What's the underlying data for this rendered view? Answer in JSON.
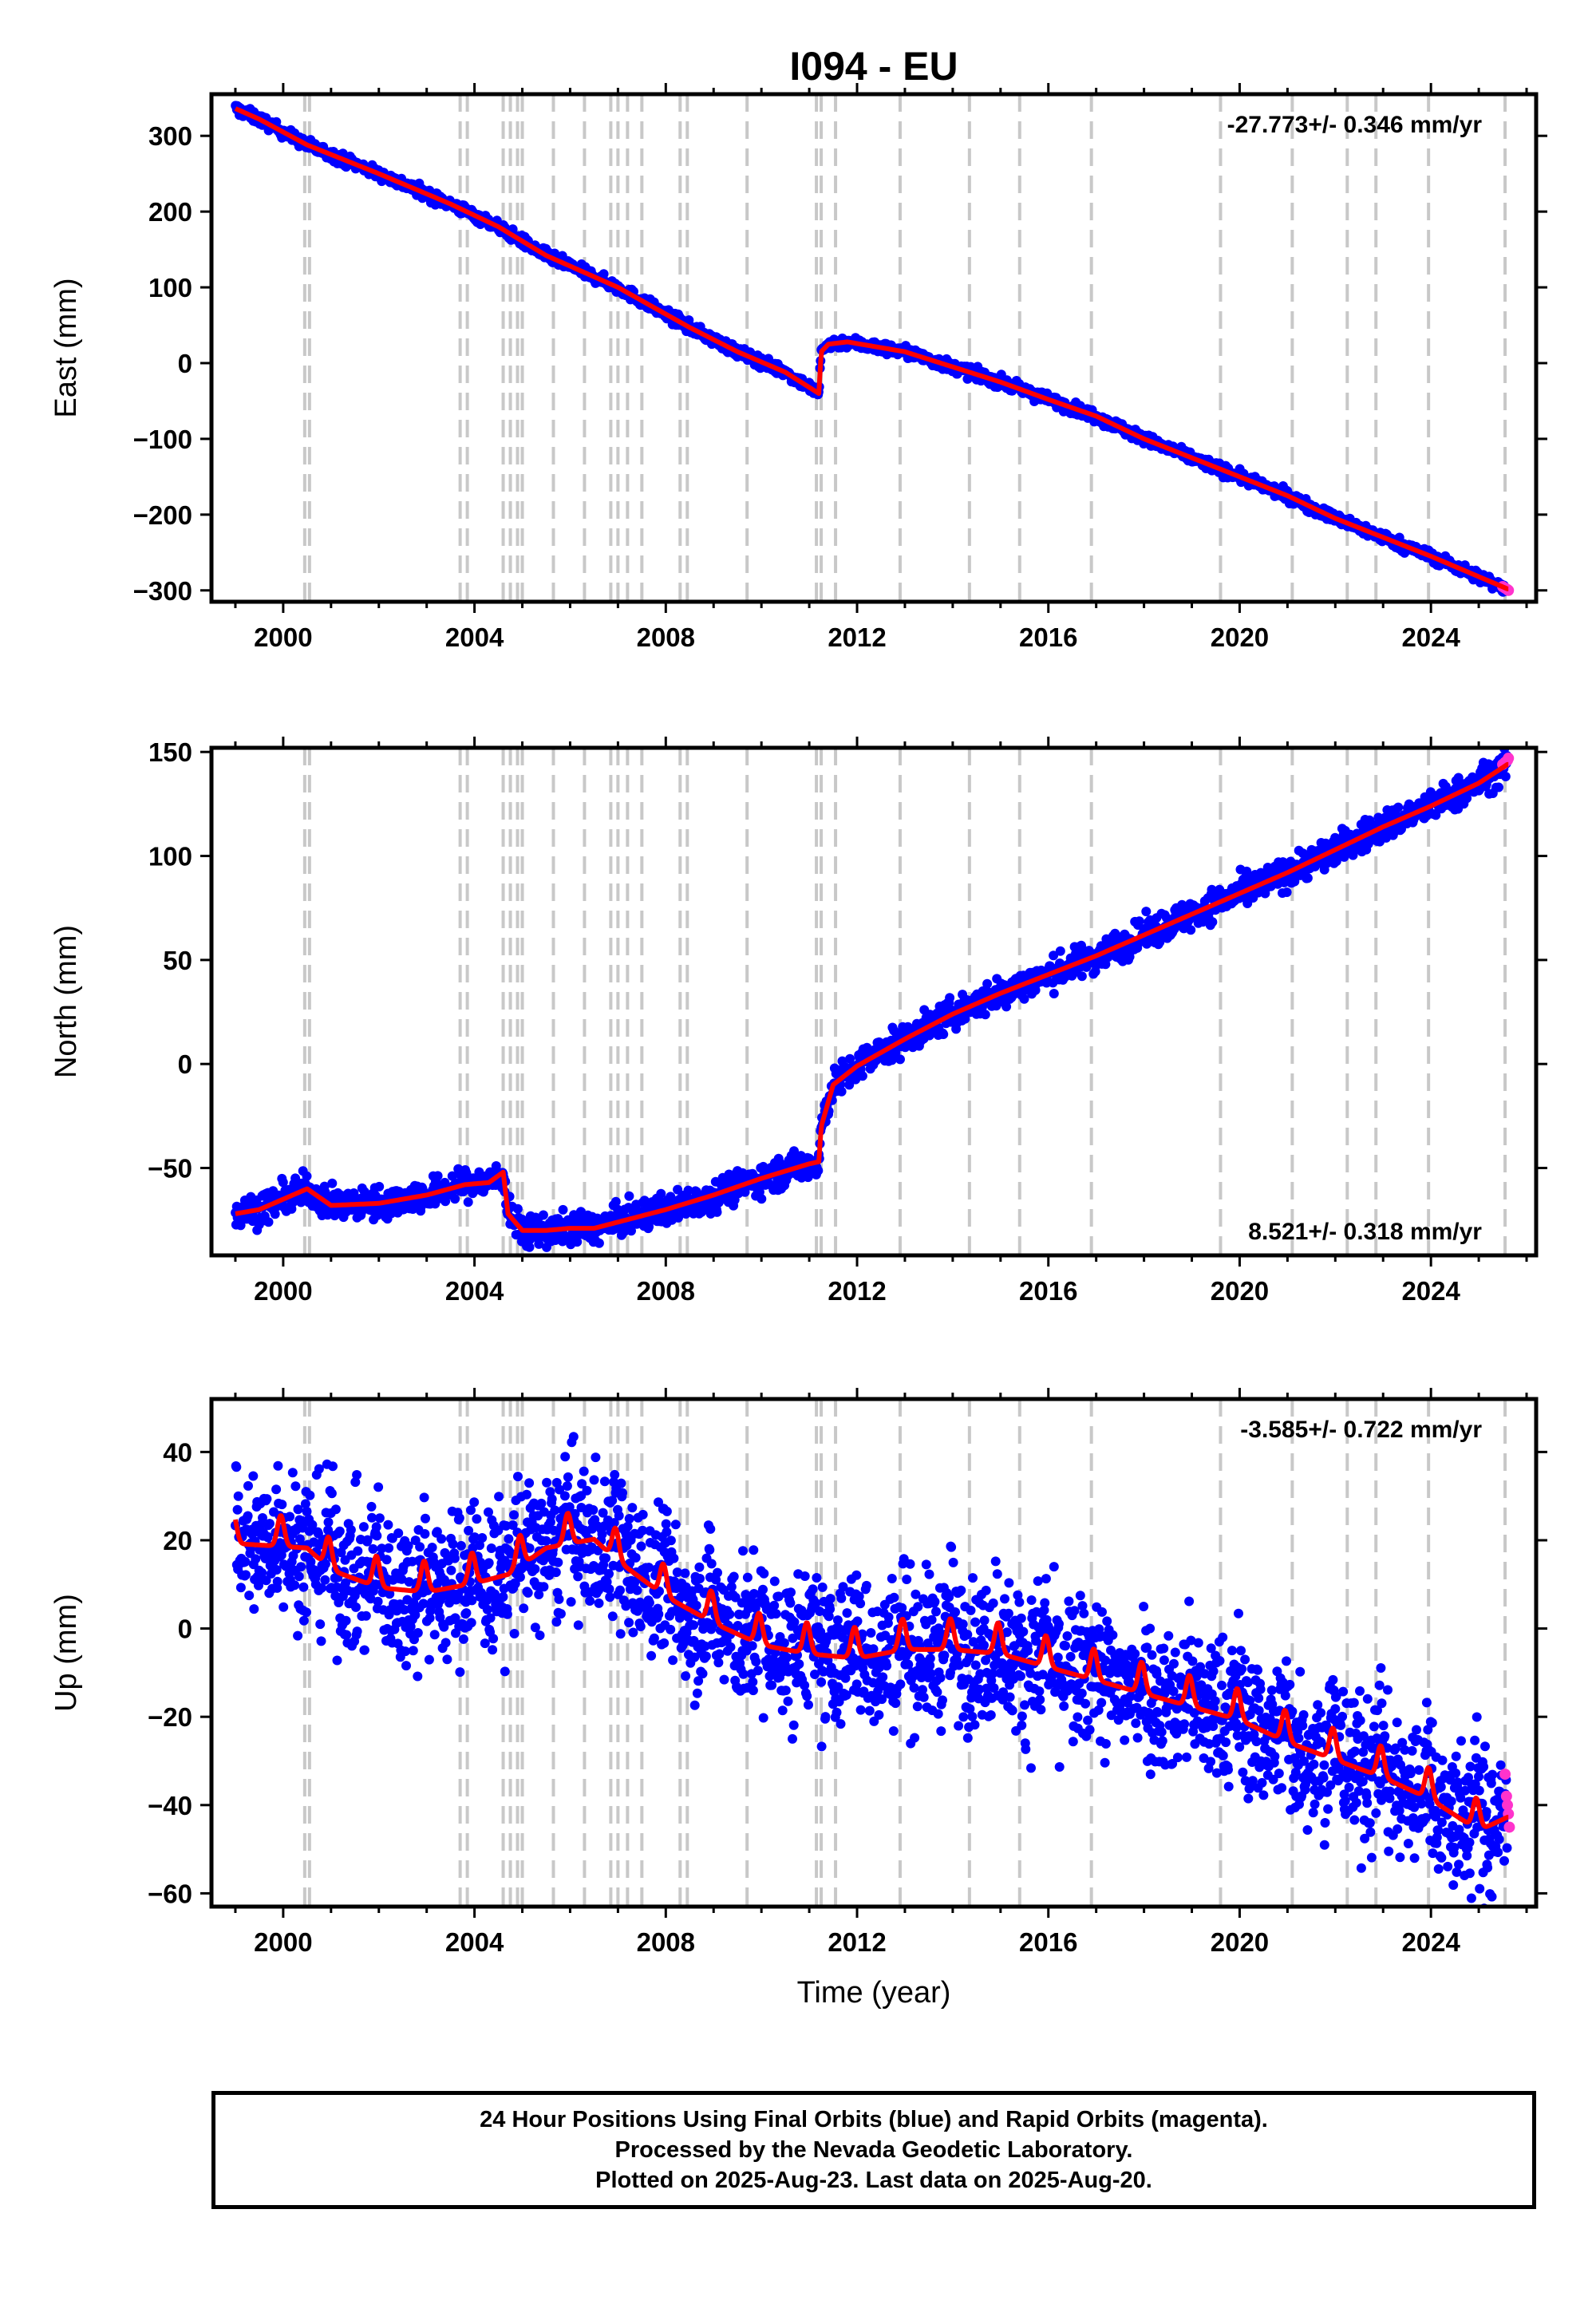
{
  "title": "I094 - EU",
  "colors": {
    "final_orbits": "#0000ff",
    "rapid_orbits": "#ff33cc",
    "model": "#ff0000",
    "event_lines": "#c8c8c8"
  },
  "footer": {
    "line1": "24 Hour Positions Using Final Orbits (blue) and Rapid Orbits (magenta).",
    "line2": "Processed by the Nevada Geodetic Laboratory.",
    "line3": "Plotted on 2025-Aug-23. Last data on 2025-Aug-20."
  },
  "chart_data": [
    {
      "type": "scatter",
      "component": "east",
      "ylabel": "East (mm)",
      "xlabel": "",
      "rate": "-27.773+/- 0.346 mm/yr",
      "rate_position": "top-right",
      "xlim": [
        1998.5,
        2026.2
      ],
      "ylim": [
        -315,
        355
      ],
      "yticks": [
        300,
        200,
        100,
        0,
        -100,
        -200,
        -300
      ],
      "ytick_labels": [
        "300",
        "200",
        "100",
        "0",
        "−100",
        "−200",
        "−300"
      ],
      "xticks": [
        2000,
        2004,
        2008,
        2012,
        2016,
        2020,
        2024
      ],
      "xtick_labels": [
        "2000",
        "2004",
        "2008",
        "2012",
        "2016",
        "2020",
        "2024"
      ],
      "model": {
        "x": [
          1999.0,
          1999.5,
          2000.5,
          2002.0,
          2003.5,
          2004.5,
          2005.5,
          2007.0,
          2008.5,
          2009.5,
          2010.5,
          2011.2,
          2011.25,
          2011.4,
          2011.8,
          2013.0,
          2014.0,
          2015.0,
          2016.0,
          2017.0,
          2018.0,
          2019.0,
          2020.0,
          2021.0,
          2022.0,
          2023.0,
          2024.0,
          2025.6
        ],
        "y": [
          336,
          322,
          288,
          250,
          210,
          180,
          142,
          100,
          47,
          15,
          -12,
          -40,
          15,
          25,
          28,
          15,
          -5,
          -25,
          -48,
          -70,
          -100,
          -125,
          -150,
          -175,
          -205,
          -230,
          -255,
          -298
        ]
      },
      "scatter_spread": 4,
      "rapid_points": {
        "x": [
          2025.5,
          2025.55,
          2025.6,
          2025.62
        ],
        "y": [
          -295,
          -297,
          -299,
          -300
        ]
      }
    },
    {
      "type": "scatter",
      "component": "north",
      "ylabel": "North (mm)",
      "xlabel": "",
      "rate": "8.521+/- 0.318 mm/yr",
      "rate_position": "bottom-right",
      "xlim": [
        1998.5,
        2026.2
      ],
      "ylim": [
        -92,
        152
      ],
      "yticks": [
        150,
        100,
        50,
        0,
        -50
      ],
      "ytick_labels": [
        "150",
        "100",
        "50",
        "0",
        "−50"
      ],
      "xticks": [
        2000,
        2004,
        2008,
        2012,
        2016,
        2020,
        2024
      ],
      "xtick_labels": [
        "2000",
        "2004",
        "2008",
        "2012",
        "2016",
        "2020",
        "2024"
      ],
      "model": {
        "x": [
          1999.0,
          1999.5,
          2000.0,
          2000.5,
          2001.0,
          2002.0,
          2003.0,
          2003.8,
          2004.3,
          2004.6,
          2004.7,
          2005.0,
          2005.5,
          2006.0,
          2006.5,
          2007.0,
          2008.0,
          2009.0,
          2010.0,
          2011.0,
          2011.2,
          2011.25,
          2011.5,
          2012.0,
          2013.0,
          2014.0,
          2015.0,
          2016.0,
          2017.0,
          2018.0,
          2019.0,
          2020.0,
          2021.0,
          2022.0,
          2023.0,
          2024.0,
          2025.0,
          2025.6
        ],
        "y": [
          -72,
          -70,
          -65,
          -60,
          -68,
          -67,
          -63,
          -58,
          -57,
          -52,
          -72,
          -80,
          -80,
          -79,
          -79,
          -76,
          -70,
          -63,
          -55,
          -48,
          -47,
          -30,
          -10,
          -1,
          12,
          24,
          34,
          43,
          52,
          62,
          72,
          82,
          92,
          103,
          114,
          124,
          135,
          144
        ]
      },
      "scatter_spread": 4,
      "rapid_points": {
        "x": [
          2025.5,
          2025.55,
          2025.6,
          2025.62
        ],
        "y": [
          144,
          145,
          146,
          147
        ]
      }
    },
    {
      "type": "scatter",
      "component": "up",
      "ylabel": "Up (mm)",
      "xlabel": "Time (year)",
      "rate": "-3.585+/- 0.722 mm/yr",
      "rate_position": "top-right",
      "xlim": [
        1998.5,
        2026.2
      ],
      "ylim": [
        -63,
        52
      ],
      "yticks": [
        40,
        20,
        0,
        -20,
        -40,
        -60
      ],
      "ytick_labels": [
        "40",
        "20",
        "0",
        "−20",
        "−40",
        "−60"
      ],
      "xticks": [
        2000,
        2004,
        2008,
        2012,
        2016,
        2020,
        2024
      ],
      "xtick_labels": [
        "2000",
        "2004",
        "2008",
        "2012",
        "2016",
        "2020",
        "2024"
      ],
      "model": {
        "x": [
          1999.0,
          2000.5,
          2001.0,
          2002.0,
          2003.0,
          2004.0,
          2004.7,
          2005.5,
          2006.5,
          2007.0,
          2008.0,
          2009.0,
          2010.0,
          2011.0,
          2012.0,
          2013.0,
          2014.0,
          2015.0,
          2016.0,
          2017.0,
          2018.0,
          2019.0,
          2020.0,
          2021.0,
          2022.0,
          2023.0,
          2024.0,
          2025.0,
          2025.6
        ],
        "y": [
          21,
          20,
          15,
          11,
          10,
          12,
          14,
          20,
          22,
          17,
          9,
          3,
          -2,
          -4,
          -5,
          -3,
          -3,
          -4,
          -7,
          -10,
          -13,
          -16,
          -19,
          -24,
          -28,
          -32,
          -37,
          -44,
          -41
        ],
        "seasonal_amplitude": 7,
        "seasonal_phase": 0.45
      },
      "scatter_spread": 9,
      "rapid_points": {
        "x": [
          2025.55,
          2025.58,
          2025.6,
          2025.62,
          2025.64
        ],
        "y": [
          -33,
          -38,
          -40,
          -42,
          -45
        ]
      }
    }
  ],
  "event_lines": [
    2000.45,
    2000.55,
    2003.7,
    2003.85,
    2004.6,
    2004.75,
    2004.9,
    2005.0,
    2005.65,
    2006.3,
    2006.85,
    2007.0,
    2007.2,
    2007.5,
    2008.3,
    2008.45,
    2009.7,
    2011.15,
    2011.25,
    2011.55,
    2012.9,
    2014.35,
    2015.4,
    2016.9,
    2019.6,
    2021.1,
    2022.25,
    2022.85,
    2023.95,
    2025.55
  ]
}
